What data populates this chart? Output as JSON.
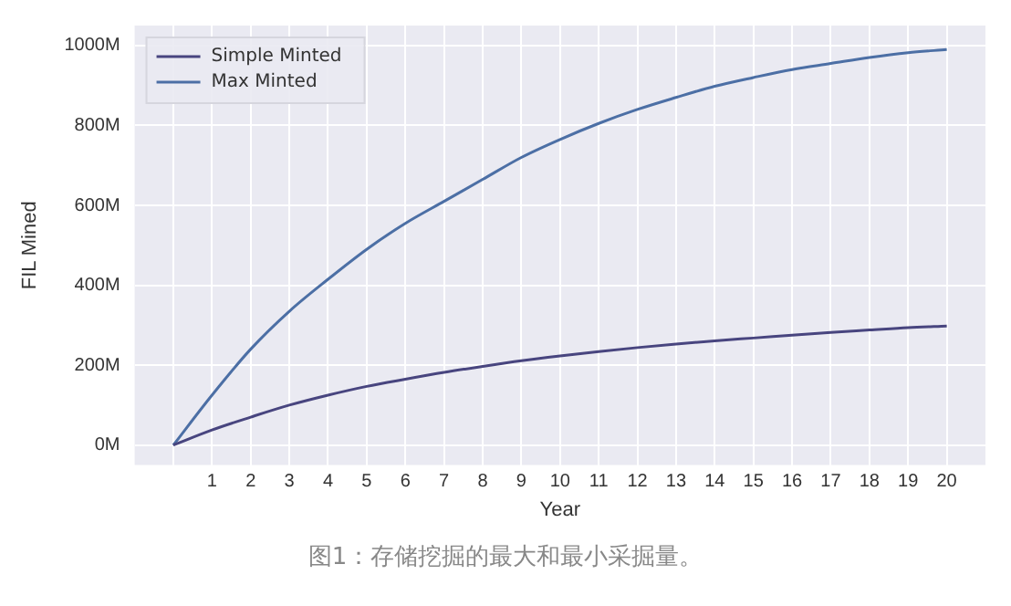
{
  "chart_data": {
    "type": "line",
    "xlabel": "Year",
    "ylabel": "FIL Mined",
    "annotations": [
      "图1：存储挖掘的最大和最小采掘量。"
    ],
    "x": [
      0,
      1,
      2,
      3,
      4,
      5,
      6,
      7,
      8,
      9,
      10,
      11,
      12,
      13,
      14,
      15,
      16,
      17,
      18,
      19,
      20
    ],
    "series": [
      {
        "name": "Simple Minted",
        "color": "#48457f",
        "values": [
          0,
          38,
          70,
          100,
          125,
          147,
          165,
          182,
          197,
          211,
          223,
          234,
          244,
          253,
          261,
          268,
          275,
          282,
          288,
          294,
          298
        ]
      },
      {
        "name": "Max Minted",
        "color": "#4c6fa5",
        "values": [
          0,
          125,
          240,
          335,
          415,
          490,
          555,
          610,
          665,
          720,
          765,
          805,
          840,
          870,
          898,
          920,
          940,
          955,
          970,
          982,
          990
        ]
      }
    ],
    "xlim": [
      -1,
      21
    ],
    "xticks": [
      {
        "value": 0,
        "label": null
      },
      1,
      2,
      3,
      4,
      5,
      6,
      7,
      8,
      9,
      10,
      11,
      12,
      13,
      14,
      15,
      16,
      17,
      18,
      19,
      20
    ],
    "ylim": [
      -50,
      1050
    ],
    "yticks": [
      {
        "value": 0,
        "label": "0M"
      },
      {
        "value": 200,
        "label": "200M"
      },
      {
        "value": 400,
        "label": "400M"
      },
      {
        "value": 600,
        "label": "600M"
      },
      {
        "value": 800,
        "label": "800M"
      },
      {
        "value": 1000,
        "label": "1000M"
      }
    ],
    "grid": true,
    "legend": "top left",
    "marker": "none",
    "line_style": "solid"
  }
}
